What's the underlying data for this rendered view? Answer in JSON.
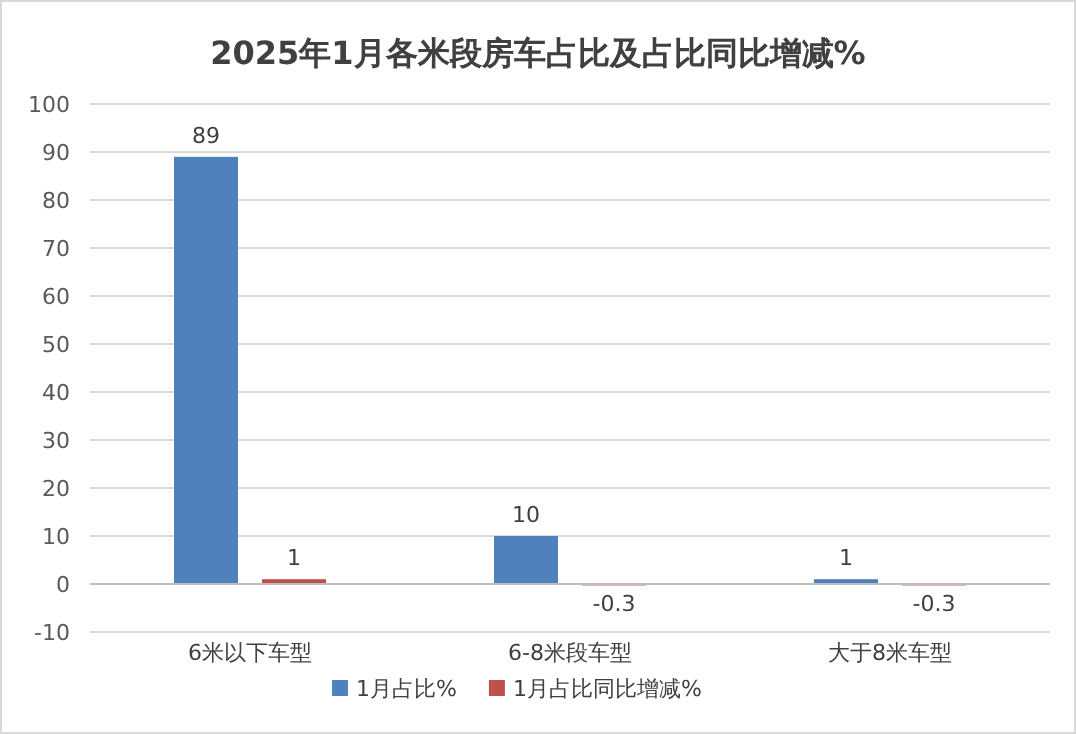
{
  "chart_data": {
    "type": "bar",
    "title": "2025年1月各米段房车占比及占比同比增减%",
    "categories": [
      "6米以下车型",
      "6-8米段车型",
      "大于8米车型"
    ],
    "series": [
      {
        "name": "1月占比%",
        "color": "#4f81bd",
        "values": [
          89,
          10,
          1
        ],
        "value_labels": [
          "89",
          "10",
          "1"
        ]
      },
      {
        "name": "1月占比同比增减%",
        "color": "#c0504d",
        "values": [
          1,
          -0.3,
          -0.3
        ],
        "value_labels": [
          "1",
          "-0.3",
          "-0.3"
        ]
      }
    ],
    "ylim": [
      -10,
      100
    ],
    "yticks": [
      -10,
      0,
      10,
      20,
      30,
      40,
      50,
      60,
      70,
      80,
      90,
      100
    ],
    "grid": "y",
    "legend": "bottom"
  }
}
